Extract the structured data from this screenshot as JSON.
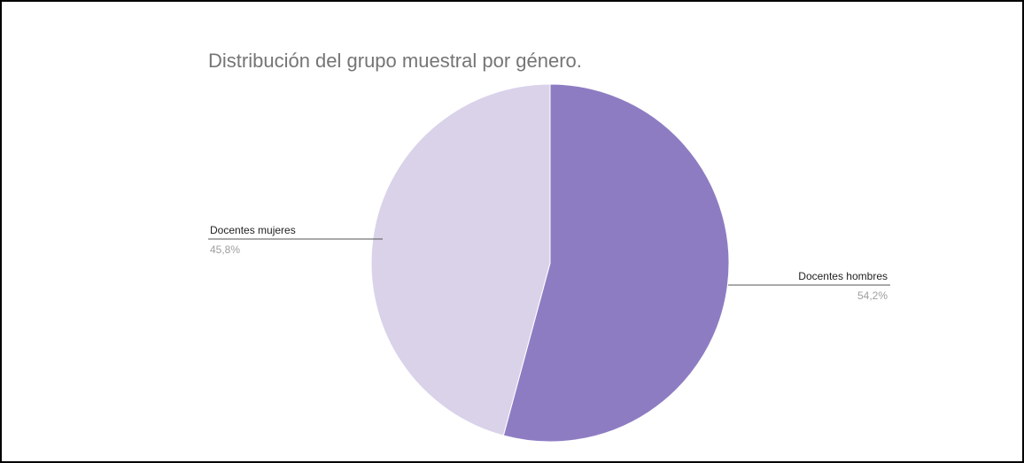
{
  "chart_data": {
    "type": "pie",
    "title": "Distribución del grupo muestral por género.",
    "slices": [
      {
        "label": "Docentes hombres",
        "value": 54.2,
        "value_label": "54,2%",
        "color": "#8e7cc3"
      },
      {
        "label": "Docentes mujeres",
        "value": 45.8,
        "value_label": "45,8%",
        "color": "#d9d2e9"
      }
    ],
    "legend": "labels-outside"
  }
}
